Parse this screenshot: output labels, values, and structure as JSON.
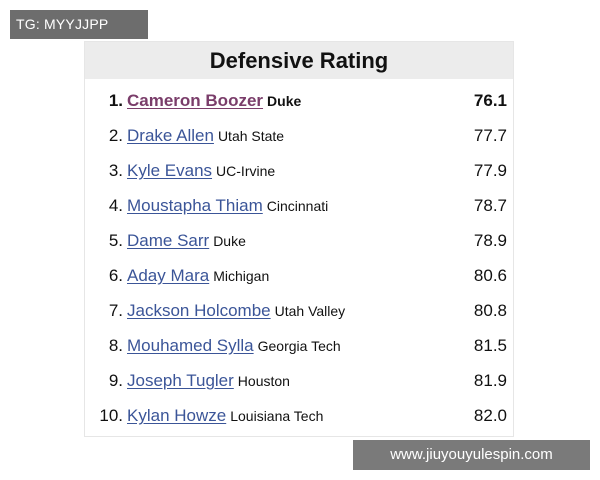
{
  "watermark_top": "TG: MYYJJPP",
  "watermark_bottom": "www.jiuyouyulespin.com",
  "table": {
    "title": "Defensive Rating",
    "rows": [
      {
        "rank": "1.",
        "name": "Cameron Boozer",
        "school": "Duke",
        "value": "76.1"
      },
      {
        "rank": "2.",
        "name": "Drake Allen",
        "school": "Utah State",
        "value": "77.7"
      },
      {
        "rank": "3.",
        "name": "Kyle Evans",
        "school": "UC-Irvine",
        "value": "77.9"
      },
      {
        "rank": "4.",
        "name": "Moustapha Thiam",
        "school": "Cincinnati",
        "value": "78.7"
      },
      {
        "rank": "5.",
        "name": "Dame Sarr",
        "school": "Duke",
        "value": "78.9"
      },
      {
        "rank": "6.",
        "name": "Aday Mara",
        "school": "Michigan",
        "value": "80.6"
      },
      {
        "rank": "7.",
        "name": "Jackson Holcombe",
        "school": "Utah Valley",
        "value": "80.8"
      },
      {
        "rank": "8.",
        "name": "Mouhamed Sylla",
        "school": "Georgia Tech",
        "value": "81.5"
      },
      {
        "rank": "9.",
        "name": "Joseph Tugler",
        "school": "Houston",
        "value": "81.9"
      },
      {
        "rank": "10.",
        "name": "Kylan Howze",
        "school": "Louisiana Tech",
        "value": "82.0"
      }
    ]
  }
}
